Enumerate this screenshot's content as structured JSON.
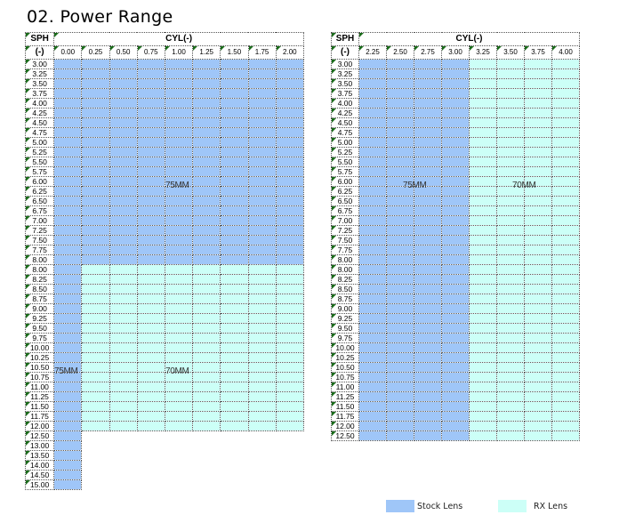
{
  "page": {
    "title": "02. Power Range"
  },
  "table_left": {
    "sph_header": "SPH",
    "sph_sign": "(-)",
    "cyl_header": "CYL(-)",
    "cyl_values": [
      "0.00",
      "0.25",
      "0.50",
      "0.75",
      "1.00",
      "1.25",
      "1.50",
      "1.75",
      "2.00"
    ],
    "sph_values": [
      "3.00",
      "3.25",
      "3.50",
      "3.75",
      "4.00",
      "4.25",
      "4.50",
      "4.75",
      "5.00",
      "5.25",
      "5.50",
      "5.75",
      "6.00",
      "6.25",
      "6.50",
      "6.75",
      "7.00",
      "7.25",
      "7.50",
      "7.75",
      "8.00",
      "8.00",
      "8.25",
      "8.50",
      "8.75",
      "9.00",
      "9.25",
      "9.50",
      "9.75",
      "10.00",
      "10.25",
      "10.50",
      "10.75",
      "11.00",
      "11.25",
      "11.50",
      "11.75",
      "12.00",
      "12.50",
      "13.00",
      "13.50",
      "14.00",
      "14.50",
      "15.00"
    ],
    "zones": [
      {
        "label": "75MM",
        "type": "stock",
        "sph_from": "3.00",
        "sph_to": "8.00",
        "cyl_from": "0.00",
        "cyl_to": "2.00"
      },
      {
        "label": "75MM",
        "type": "stock",
        "sph_from": "8.00",
        "sph_to": "15.00",
        "cyl_from": "0.00",
        "cyl_to": "0.00"
      },
      {
        "label": "70MM",
        "type": "rx",
        "sph_from": "8.00",
        "sph_to": "12.00",
        "cyl_from": "0.25",
        "cyl_to": "2.00"
      }
    ]
  },
  "table_right": {
    "sph_header": "SPH",
    "sph_sign": "(-)",
    "cyl_header": "CYL(-)",
    "cyl_values": [
      "2.25",
      "2.50",
      "2.75",
      "3.00",
      "3.25",
      "3.50",
      "3.75",
      "4.00"
    ],
    "sph_values": [
      "3.00",
      "3.25",
      "3.50",
      "3.75",
      "4.00",
      "4.25",
      "4.50",
      "4.75",
      "5.00",
      "5.25",
      "5.50",
      "5.75",
      "6.00",
      "6.25",
      "6.50",
      "6.75",
      "7.00",
      "7.25",
      "7.50",
      "7.75",
      "8.00",
      "8.00",
      "8.25",
      "8.50",
      "8.75",
      "9.00",
      "9.25",
      "9.50",
      "9.75",
      "10.00",
      "10.25",
      "10.50",
      "10.75",
      "11.00",
      "11.25",
      "11.50",
      "11.75",
      "12.00",
      "12.50"
    ],
    "zones": [
      {
        "label": "75MM",
        "type": "stock",
        "sph_from": "3.00",
        "sph_to": "12.50",
        "cyl_from": "2.25",
        "cyl_to": "3.00"
      },
      {
        "label": "70MM",
        "type": "rx",
        "sph_from": "3.00",
        "sph_to": "12.50",
        "cyl_from": "3.25",
        "cyl_to": "4.00"
      }
    ]
  },
  "legend": {
    "items": [
      {
        "label": "Stock Lens",
        "color": "#9fc6f8"
      },
      {
        "label": "RX Lens",
        "color": "#ccfff7"
      }
    ]
  },
  "colors": {
    "stock": "#9fc6f8",
    "rx": "#ccfff7"
  }
}
